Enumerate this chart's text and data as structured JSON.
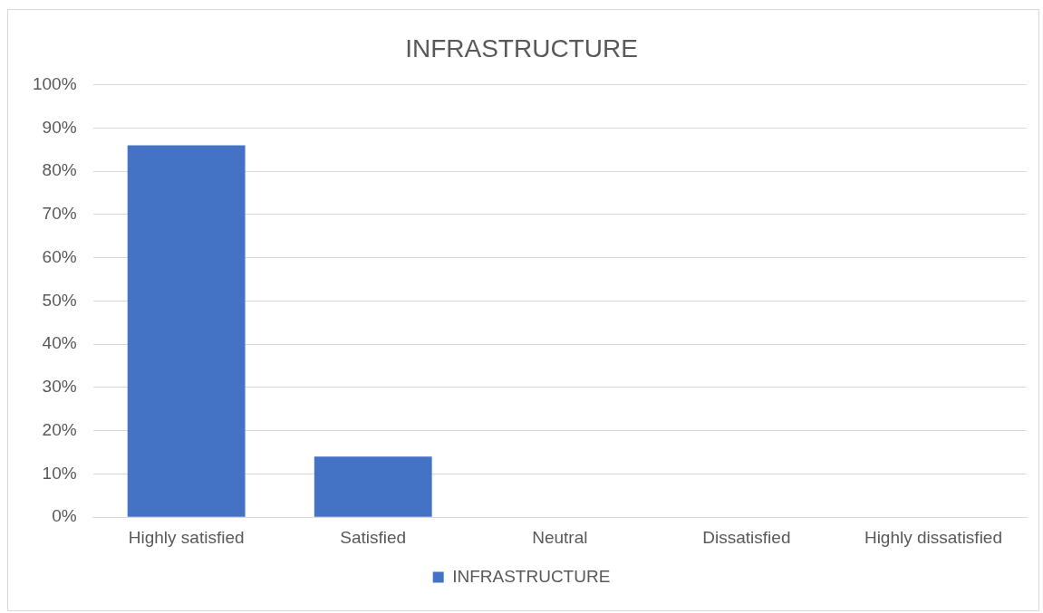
{
  "chart_data": {
    "type": "bar",
    "title": "INFRASTRUCTURE",
    "categories": [
      "Highly satisfied",
      "Satisfied",
      "Neutral",
      "Dissatisfied",
      "Highly dissatisfied"
    ],
    "series": [
      {
        "name": "INFRASTRUCTURE",
        "color": "#4472c4",
        "values": [
          86,
          14,
          0,
          0,
          0
        ]
      }
    ],
    "ylim": [
      0,
      100
    ],
    "yticks": [
      {
        "value": 0,
        "label": "0%"
      },
      {
        "value": 10,
        "label": "10%"
      },
      {
        "value": 20,
        "label": "20%"
      },
      {
        "value": 30,
        "label": "30%"
      },
      {
        "value": 40,
        "label": "40%"
      },
      {
        "value": 50,
        "label": "50%"
      },
      {
        "value": 60,
        "label": "60%"
      },
      {
        "value": 70,
        "label": "70%"
      },
      {
        "value": 80,
        "label": "80%"
      },
      {
        "value": 90,
        "label": "90%"
      },
      {
        "value": 100,
        "label": "100%"
      }
    ],
    "grid": "y",
    "legend": "bottom"
  }
}
